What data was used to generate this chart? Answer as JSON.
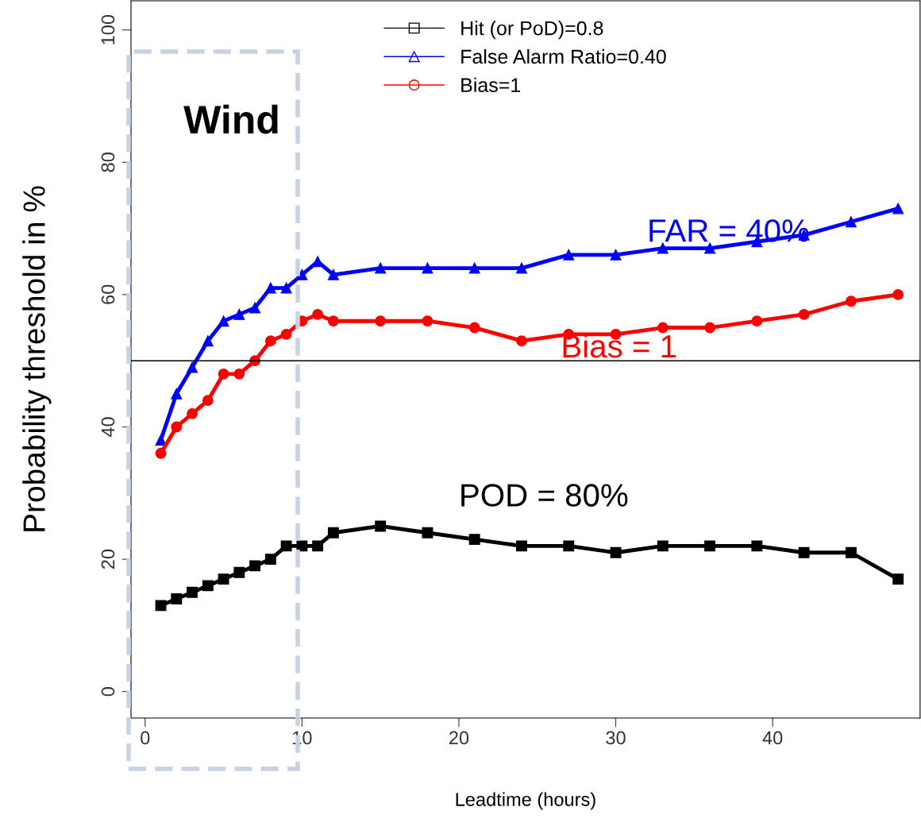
{
  "chart_data": {
    "type": "line",
    "xlabel": "Leadtime (hours)",
    "ylabel": "Probability threshold in %",
    "x": [
      1,
      2,
      3,
      4,
      5,
      6,
      7,
      8,
      9,
      10,
      11,
      12,
      15,
      18,
      21,
      24,
      27,
      30,
      33,
      36,
      39,
      42,
      45,
      48
    ],
    "series": [
      {
        "name": "Hit (or PoD)=0.8",
        "color": "#000000",
        "marker": "square",
        "values": [
          13,
          14,
          15,
          16,
          17,
          18,
          19,
          20,
          22,
          22,
          22,
          24,
          25,
          24,
          23,
          22,
          22,
          21,
          22,
          22,
          22,
          21,
          21,
          17
        ]
      },
      {
        "name": "False Alarm Ratio=0.40",
        "color": "#0000ff",
        "marker": "triangle",
        "values": [
          38,
          45,
          49,
          53,
          56,
          57,
          58,
          61,
          61,
          63,
          65,
          63,
          64,
          64,
          64,
          64,
          66,
          66,
          67,
          67,
          68,
          69,
          71,
          73
        ]
      },
      {
        "name": "Bias=1",
        "color": "#ff0000",
        "marker": "circle",
        "values": [
          36,
          40,
          42,
          44,
          48,
          48,
          50,
          53,
          54,
          56,
          57,
          56,
          56,
          56,
          55,
          53,
          54,
          54,
          55,
          55,
          56,
          57,
          59,
          60
        ]
      }
    ],
    "xlim": [
      -0.9,
      49.4
    ],
    "ylim": [
      -4,
      104.4
    ],
    "xticks": [
      0,
      10,
      20,
      30,
      40
    ],
    "yticks": [
      0,
      20,
      40,
      60,
      80,
      100
    ],
    "ref_lines": [
      {
        "axis": "y",
        "value": 50,
        "color": "#000000"
      }
    ],
    "annotations": [
      "Wind",
      "FAR = 40%",
      "Bias = 1",
      "POD = 80%"
    ],
    "legend": "top",
    "grid": false,
    "line_style": "solid"
  }
}
